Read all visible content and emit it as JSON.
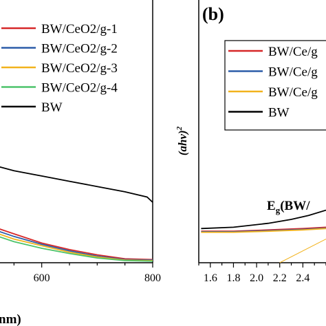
{
  "chart_data": [
    {
      "panel": "a",
      "type": "line",
      "xlabel": "nm)",
      "xlim": [
        500,
        800
      ],
      "ylim": [
        0,
        1
      ],
      "x_ticks": [
        600,
        800
      ],
      "legend_placement": "top-left",
      "series": [
        {
          "name": "BW/CeO2/g-1",
          "color": "#d62728",
          "points": [
            [
              480,
              0.16
            ],
            [
              550,
              0.11
            ],
            [
              600,
              0.075
            ],
            [
              650,
              0.05
            ],
            [
              700,
              0.03
            ],
            [
              750,
              0.015
            ],
            [
              800,
              0.012
            ]
          ]
        },
        {
          "name": "BW/CeO2/g-2",
          "color": "#2b5ca8",
          "points": [
            [
              480,
              0.15
            ],
            [
              550,
              0.1
            ],
            [
              600,
              0.07
            ],
            [
              650,
              0.045
            ],
            [
              700,
              0.025
            ],
            [
              750,
              0.012
            ],
            [
              800,
              0.01
            ]
          ]
        },
        {
          "name": "BW/CeO2/g-3",
          "color": "#f2b21c",
          "points": [
            [
              480,
              0.14
            ],
            [
              550,
              0.09
            ],
            [
              600,
              0.065
            ],
            [
              650,
              0.04
            ],
            [
              700,
              0.022
            ],
            [
              750,
              0.01
            ],
            [
              800,
              0.008
            ]
          ]
        },
        {
          "name": "BW/CeO2/g-4",
          "color": "#4cc36a",
          "points": [
            [
              480,
              0.13
            ],
            [
              550,
              0.08
            ],
            [
              600,
              0.055
            ],
            [
              650,
              0.035
            ],
            [
              700,
              0.018
            ],
            [
              750,
              0.008
            ],
            [
              800,
              0.006
            ]
          ]
        },
        {
          "name": "BW",
          "color": "#000000",
          "points": [
            [
              480,
              0.39
            ],
            [
              550,
              0.35
            ],
            [
              600,
              0.33
            ],
            [
              650,
              0.31
            ],
            [
              700,
              0.29
            ],
            [
              750,
              0.27
            ],
            [
              790,
              0.25
            ],
            [
              800,
              0.23
            ]
          ]
        }
      ]
    },
    {
      "panel": "b",
      "panel_label": "(b)",
      "type": "line",
      "ylabel": "(ahv)",
      "ylabel_sup": "2",
      "xlim": [
        1.5,
        2.6
      ],
      "ylim": [
        0,
        1
      ],
      "x_ticks": [
        "1.6",
        "1.8",
        "2.0",
        "2.2",
        "2.4"
      ],
      "legend_placement": "top-right",
      "annotation": {
        "main": "E",
        "sub": "g",
        "rest": "(BW/"
      },
      "series": [
        {
          "name": "BW/Ce/g",
          "color": "#d62728",
          "points": [
            [
              1.52,
              0.12
            ],
            [
              1.8,
              0.12
            ],
            [
              2.1,
              0.125
            ],
            [
              2.4,
              0.13
            ],
            [
              2.6,
              0.135
            ]
          ]
        },
        {
          "name": "BW/Ce/g",
          "color": "#2b5ca8",
          "points": [
            [
              1.52,
              0.118
            ],
            [
              1.8,
              0.118
            ],
            [
              2.1,
              0.122
            ],
            [
              2.4,
              0.127
            ],
            [
              2.6,
              0.132
            ]
          ]
        },
        {
          "name": "BW/Ce/g",
          "color": "#f2b21c",
          "points": [
            [
              1.52,
              0.116
            ],
            [
              1.8,
              0.116
            ],
            [
              2.1,
              0.12
            ],
            [
              2.4,
              0.125
            ],
            [
              2.6,
              0.13
            ]
          ]
        },
        {
          "name": "BW",
          "color": "#000000",
          "points": [
            [
              1.52,
              0.13
            ],
            [
              1.8,
              0.135
            ],
            [
              2.1,
              0.15
            ],
            [
              2.3,
              0.165
            ],
            [
              2.45,
              0.18
            ],
            [
              2.6,
              0.2
            ]
          ]
        }
      ],
      "fit_line": {
        "color": "#f2b21c",
        "points": [
          [
            2.2,
            0.0
          ],
          [
            2.6,
            0.09
          ]
        ]
      }
    }
  ]
}
